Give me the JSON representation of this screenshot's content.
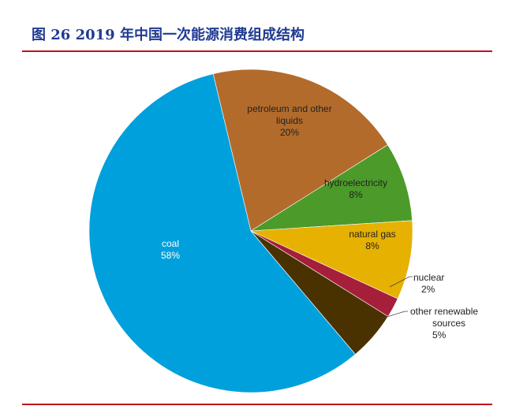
{
  "header": {
    "title": "图 26 2019 年中国一次能源消费组成结构"
  },
  "chart_data": {
    "type": "pie",
    "title": "图 26 2019 年中国一次能源消费组成结构",
    "unit": "%",
    "slices": [
      {
        "label": [
          "coal"
        ],
        "value_label": "58%",
        "value": 58,
        "color": "#00a0dc",
        "label_color": "#ffffff"
      },
      {
        "label": [
          "petroleum and other",
          "liquids"
        ],
        "value_label": "20%",
        "value": 20,
        "color": "#b36b2b",
        "label_color": "#222222"
      },
      {
        "label": [
          "hydroelectricity"
        ],
        "value_label": "8%",
        "value": 8,
        "color": "#4c9a2a",
        "label_color": "#222222"
      },
      {
        "label": [
          "natural gas"
        ],
        "value_label": "8%",
        "value": 8,
        "color": "#e6b100",
        "label_color": "#222222"
      },
      {
        "label": [
          "nuclear"
        ],
        "value_label": "2%",
        "value": 2,
        "color": "#a51e3a",
        "label_color": "#222222"
      },
      {
        "label": [
          "other renewable",
          "sources"
        ],
        "value_label": "5%",
        "value": 5,
        "color": "#4a3200",
        "label_color": "#222222"
      }
    ]
  }
}
